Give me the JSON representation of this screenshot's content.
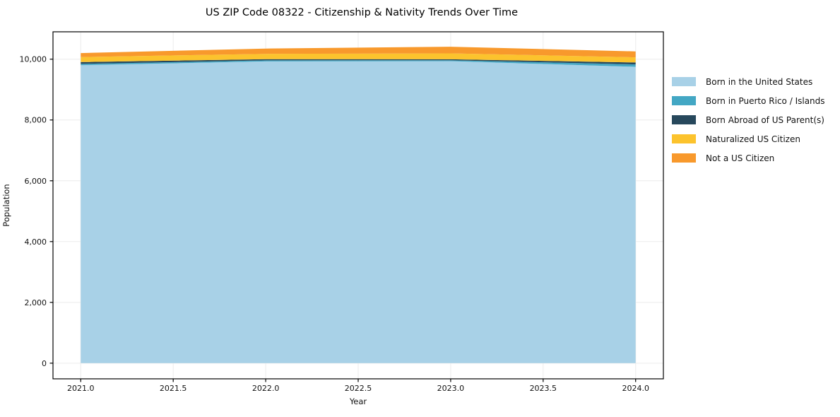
{
  "title": "US ZIP Code 08322 - Citizenship & Nativity Trends Over Time",
  "chart_data": {
    "type": "area",
    "stacked": true,
    "title": "US ZIP Code 08322 - Citizenship & Nativity Trends Over Time",
    "xlabel": "Year",
    "ylabel": "Population",
    "x": [
      2021,
      2022,
      2023,
      2024
    ],
    "series": [
      {
        "name": "Born in the United States",
        "color": "#A8D1E7",
        "values": [
          9800,
          9925,
          9935,
          9750
        ]
      },
      {
        "name": "Born in Puerto Rico / Islands",
        "color": "#43A7C4",
        "values": [
          45,
          35,
          30,
          78
        ]
      },
      {
        "name": "Born Abroad of US Parent(s)",
        "color": "#27485C",
        "values": [
          60,
          40,
          30,
          62
        ]
      },
      {
        "name": "Naturalized US Citizen",
        "color": "#FCC32D",
        "values": [
          165,
          175,
          195,
          170
        ]
      },
      {
        "name": "Not a US Citizen",
        "color": "#F8992C",
        "values": [
          130,
          175,
          220,
          195
        ]
      }
    ],
    "stack_totals": [
      10200,
      10350,
      10410,
      10255
    ],
    "xlim": [
      2020.85,
      2024.15
    ],
    "ylim": [
      -515,
      10900
    ],
    "xticks": {
      "values": [
        2021.0,
        2021.5,
        2022.0,
        2022.5,
        2023.0,
        2023.5,
        2024.0
      ],
      "labels": [
        "2021.0",
        "2021.5",
        "2022.0",
        "2022.5",
        "2023.0",
        "2023.5",
        "2024.0"
      ]
    },
    "yticks": {
      "values": [
        0,
        2000,
        4000,
        6000,
        8000,
        10000
      ],
      "labels": [
        "0",
        "2,000",
        "4,000",
        "6,000",
        "8,000",
        "10,000"
      ]
    },
    "grid": true,
    "legend_position": "right-outside",
    "colors": {
      "grid": "#ECECEC",
      "spine": "#000000",
      "tick_text": "#111111",
      "title_text": "#000000",
      "background": "#FFFFFF"
    }
  }
}
